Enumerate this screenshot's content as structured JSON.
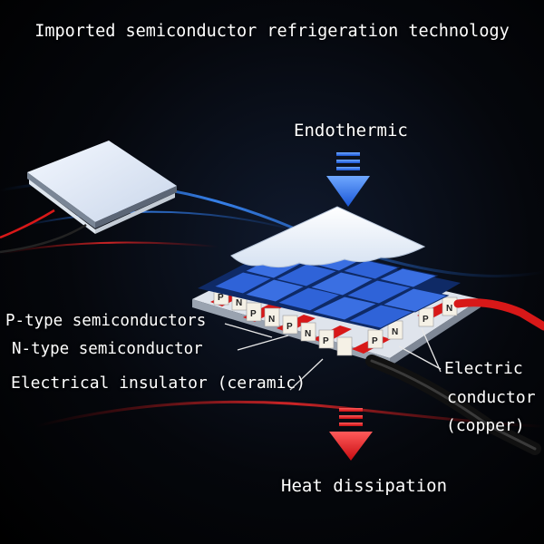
{
  "title": "Imported semiconductor refrigeration technology",
  "labels": {
    "endothermic": "Endothermic",
    "p_type": "P-type semiconductors",
    "n_type": "N-type semiconductor",
    "insulator": "Electrical insulator (ceramic)",
    "conductor_line1": "Electric",
    "conductor_line2": "conductor",
    "conductor_line3": "(copper)",
    "heat": "Heat dissipation"
  },
  "pellet_letters": {
    "p": "P",
    "n": "N"
  },
  "colors": {
    "background": "#05070c",
    "tile_blue": "#2f63d8",
    "arrow_blue": "#2a6df0",
    "arrow_red": "#e0141a",
    "wire_red": "#d81818",
    "ceramic": "#e8ecf3"
  },
  "icons": {
    "top_arrow": "arrow-down-icon",
    "bottom_arrow": "arrow-down-icon"
  }
}
